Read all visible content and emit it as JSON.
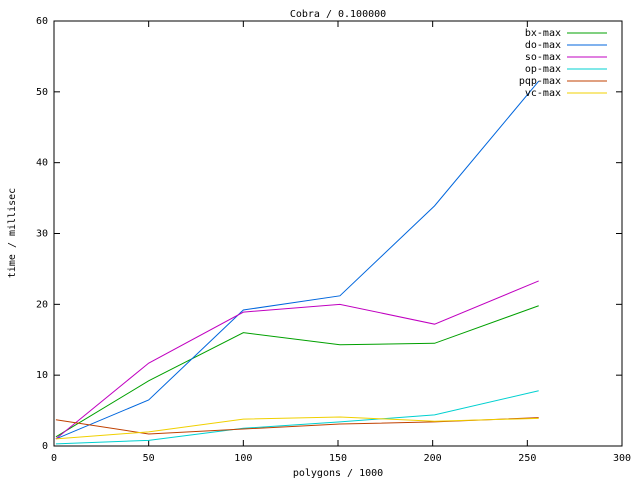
{
  "chart_data": {
    "type": "line",
    "title": "Cobra / 0.100000",
    "x_label": "polygons / 1000",
    "y_label": "time / millisec",
    "x": [
      1,
      50,
      100,
      151,
      201,
      256
    ],
    "series": [
      {
        "name": "bx-max",
        "color": "#00a000",
        "values": [
          1.3,
          9.2,
          16.0,
          14.3,
          14.5,
          19.8
        ]
      },
      {
        "name": "do-max",
        "color": "#0066dd",
        "values": [
          1.0,
          6.5,
          19.2,
          21.2,
          33.9,
          51.5
        ]
      },
      {
        "name": "so-max",
        "color": "#c000c0",
        "values": [
          1.0,
          11.7,
          18.9,
          20.0,
          17.2,
          23.3
        ]
      },
      {
        "name": "op-max",
        "color": "#00d0d0",
        "values": [
          0.3,
          0.8,
          2.5,
          3.4,
          4.4,
          7.8
        ]
      },
      {
        "name": "pqp-max",
        "color": "#c04000",
        "values": [
          3.7,
          1.7,
          2.4,
          3.1,
          3.4,
          4.0
        ]
      },
      {
        "name": "vc-max",
        "color": "#f0d000",
        "values": [
          1.0,
          2.0,
          3.8,
          4.1,
          3.5,
          3.9
        ]
      }
    ],
    "xlim": [
      0,
      300
    ],
    "xticks": [
      0,
      50,
      100,
      150,
      200,
      250,
      300
    ],
    "ylim": [
      0,
      60
    ],
    "yticks": [
      0,
      10,
      20,
      30,
      40,
      50,
      60
    ],
    "grid": false,
    "legend": "top-right"
  }
}
